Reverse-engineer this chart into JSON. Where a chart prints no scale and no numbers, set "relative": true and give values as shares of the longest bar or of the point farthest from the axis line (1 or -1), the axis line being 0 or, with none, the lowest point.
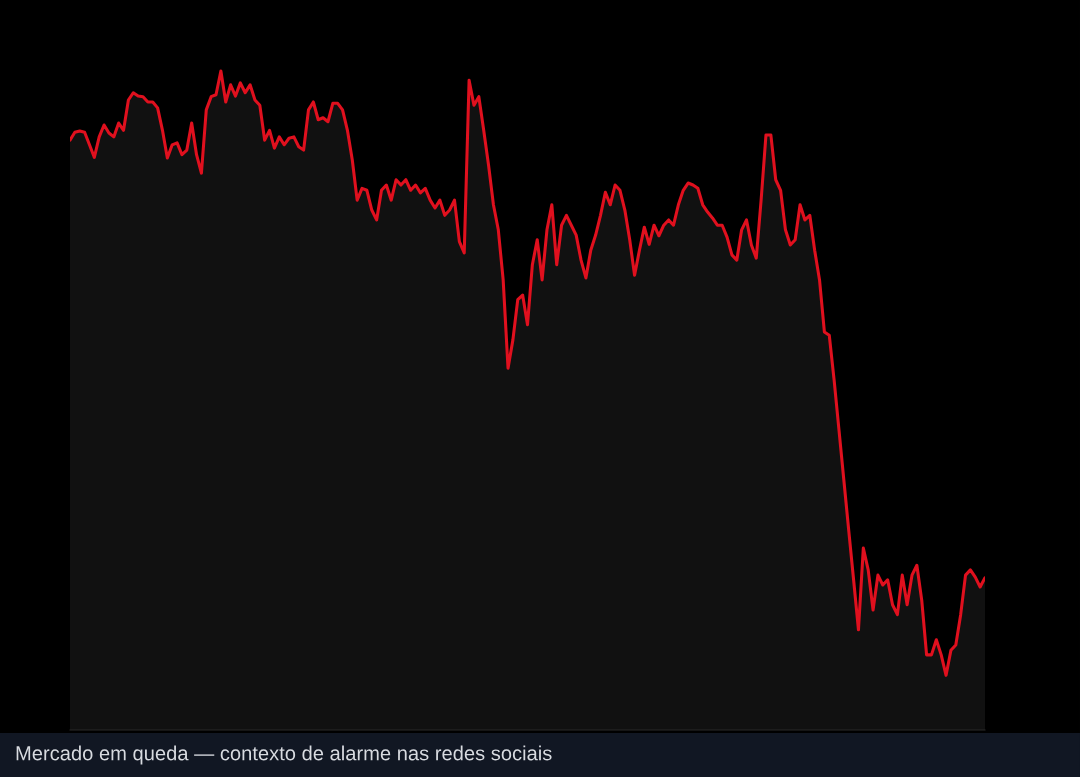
{
  "chart_data": {
    "type": "area",
    "relative": true,
    "categories": [
      null,
      null,
      null,
      null,
      null,
      null,
      null,
      null,
      null,
      null,
      null,
      null,
      null,
      null,
      null,
      null,
      null,
      null,
      null,
      null,
      null,
      null,
      null,
      null,
      null,
      null,
      null,
      null,
      null,
      null,
      null,
      null,
      null,
      null,
      null,
      null,
      null,
      null,
      null,
      null,
      null,
      null,
      null,
      null,
      null,
      null,
      null,
      null,
      null,
      null,
      null,
      null,
      null,
      null,
      null,
      null,
      null,
      null,
      null,
      null,
      null,
      null,
      null,
      null,
      null,
      null,
      null,
      null,
      null,
      null,
      null,
      null,
      null,
      null,
      null,
      null,
      null,
      null,
      null,
      null,
      null,
      null,
      null,
      null,
      null,
      null,
      null,
      null,
      null,
      null,
      null,
      null,
      null,
      null,
      null,
      null,
      null,
      null,
      null,
      null,
      null,
      null,
      null,
      null,
      null,
      null,
      null,
      null,
      null,
      null,
      null,
      null,
      null,
      null,
      null,
      null,
      null,
      null,
      null,
      null,
      null,
      null,
      null,
      null,
      null,
      null,
      null,
      null,
      null,
      null,
      null,
      null,
      null,
      null,
      null,
      null,
      null,
      null,
      null,
      null,
      null,
      null,
      null,
      null,
      null,
      null,
      null,
      null,
      null,
      null,
      null,
      null,
      null,
      null,
      null,
      null,
      null,
      null,
      null,
      null,
      null,
      null,
      null,
      null,
      null,
      null,
      null,
      null,
      null,
      null,
      null,
      null,
      null,
      null,
      null,
      null,
      null,
      null,
      null,
      null,
      null,
      null,
      null,
      null,
      null,
      null,
      null,
      null,
      null
    ],
    "series": [
      {
        "color": "#e0101e",
        "values": [
          0.895,
          0.907,
          0.909,
          0.907,
          0.888,
          0.869,
          0.9,
          0.918,
          0.906,
          0.9,
          0.921,
          0.91,
          0.956,
          0.967,
          0.962,
          0.961,
          0.953,
          0.953,
          0.944,
          0.91,
          0.868,
          0.888,
          0.891,
          0.873,
          0.88,
          0.921,
          0.873,
          0.845,
          0.941,
          0.961,
          0.964,
          1.0,
          0.953,
          0.979,
          0.962,
          0.982,
          0.967,
          0.979,
          0.956,
          0.948,
          0.895,
          0.91,
          0.883,
          0.9,
          0.888,
          0.898,
          0.9,
          0.885,
          0.88,
          0.941,
          0.953,
          0.926,
          0.929,
          0.923,
          0.951,
          0.951,
          0.941,
          0.91,
          0.865,
          0.804,
          0.822,
          0.819,
          0.789,
          0.774,
          0.819,
          0.827,
          0.804,
          0.835,
          0.827,
          0.835,
          0.819,
          0.827,
          0.815,
          0.822,
          0.804,
          0.792,
          0.804,
          0.781,
          0.789,
          0.804,
          0.741,
          0.724,
          0.986,
          0.948,
          0.961,
          0.91,
          0.857,
          0.797,
          0.759,
          0.683,
          0.549,
          0.592,
          0.653,
          0.66,
          0.615,
          0.706,
          0.744,
          0.683,
          0.759,
          0.797,
          0.706,
          0.766,
          0.781,
          0.766,
          0.751,
          0.713,
          0.686,
          0.728,
          0.751,
          0.781,
          0.816,
          0.797,
          0.827,
          0.819,
          0.789,
          0.744,
          0.69,
          0.728,
          0.763,
          0.737,
          0.766,
          0.75,
          0.766,
          0.774,
          0.766,
          0.797,
          0.819,
          0.83,
          0.827,
          0.822,
          0.797,
          0.786,
          0.777,
          0.766,
          0.766,
          0.748,
          0.721,
          0.713,
          0.759,
          0.774,
          0.736,
          0.716,
          0.804,
          0.903,
          0.903,
          0.835,
          0.819,
          0.759,
          0.736,
          0.744,
          0.797,
          0.774,
          0.781,
          0.728,
          0.683,
          0.604,
          0.599,
          0.531,
          0.455,
          0.379,
          0.303,
          0.228,
          0.152,
          0.276,
          0.243,
          0.182,
          0.235,
          0.22,
          0.228,
          0.19,
          0.175,
          0.235,
          0.19,
          0.235,
          0.25,
          0.197,
          0.114,
          0.114,
          0.137,
          0.114,
          0.083,
          0.121,
          0.129,
          0.175,
          0.235,
          0.243,
          0.232,
          0.217,
          0.231
        ]
      }
    ],
    "annotations": [
      "Mercado em queda — contexto de alarme nas redes sociais"
    ]
  }
}
